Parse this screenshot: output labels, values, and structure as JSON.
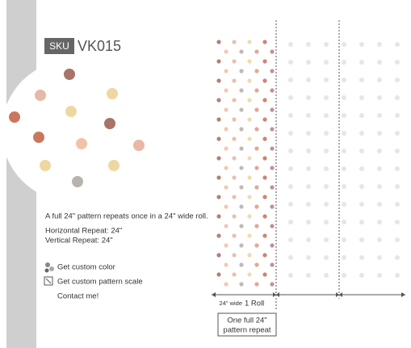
{
  "product": {
    "sku_label": "SKU",
    "sku": "VK015"
  },
  "description": {
    "summary": "A full 24\" pattern repeats once in a 24\" wide roll.",
    "horizontal_repeat": "Horizontal Repeat: 24\"",
    "vertical_repeat": "Vertical Repeat: 24\""
  },
  "actions": {
    "custom_color": "Get custom color",
    "custom_scale": "Get custom pattern scale",
    "contact": "Contact me!"
  },
  "diagram": {
    "width_label": "24\" wide",
    "roll_label": "1 Roll",
    "repeat_line1": "One full 24\"",
    "repeat_line2": "pattern repeat"
  }
}
